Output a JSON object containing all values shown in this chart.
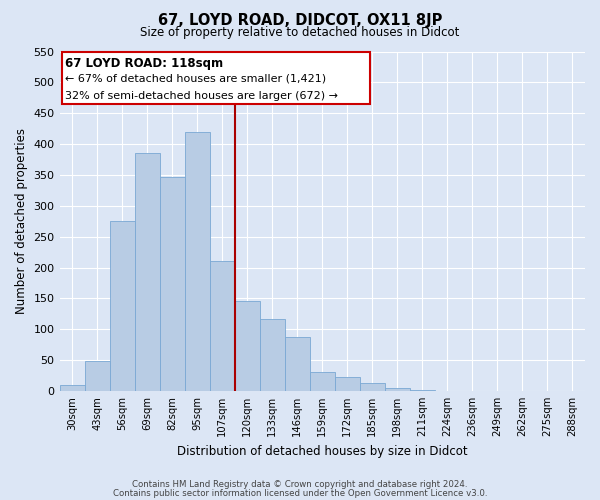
{
  "title": "67, LOYD ROAD, DIDCOT, OX11 8JP",
  "subtitle": "Size of property relative to detached houses in Didcot",
  "xlabel": "Distribution of detached houses by size in Didcot",
  "ylabel": "Number of detached properties",
  "footer_line1": "Contains HM Land Registry data © Crown copyright and database right 2024.",
  "footer_line2": "Contains public sector information licensed under the Open Government Licence v3.0.",
  "categories": [
    "30sqm",
    "43sqm",
    "56sqm",
    "69sqm",
    "82sqm",
    "95sqm",
    "107sqm",
    "120sqm",
    "133sqm",
    "146sqm",
    "159sqm",
    "172sqm",
    "185sqm",
    "198sqm",
    "211sqm",
    "224sqm",
    "236sqm",
    "249sqm",
    "262sqm",
    "275sqm",
    "288sqm"
  ],
  "bar_values": [
    10,
    48,
    275,
    385,
    347,
    420,
    210,
    145,
    117,
    88,
    30,
    22,
    13,
    5,
    1,
    0,
    0,
    0,
    0,
    0,
    0
  ],
  "bar_color": "#b8cce4",
  "bar_edge_color": "#7aa8d4",
  "vline_color": "#aa0000",
  "annotation_title": "67 LOYD ROAD: 118sqm",
  "annotation_line2": "← 67% of detached houses are smaller (1,421)",
  "annotation_line3": "32% of semi-detached houses are larger (672) →",
  "ylim": [
    0,
    550
  ],
  "yticks": [
    0,
    50,
    100,
    150,
    200,
    250,
    300,
    350,
    400,
    450,
    500,
    550
  ],
  "bg_color": "#dce6f5",
  "plot_bg_color": "#dce6f5"
}
